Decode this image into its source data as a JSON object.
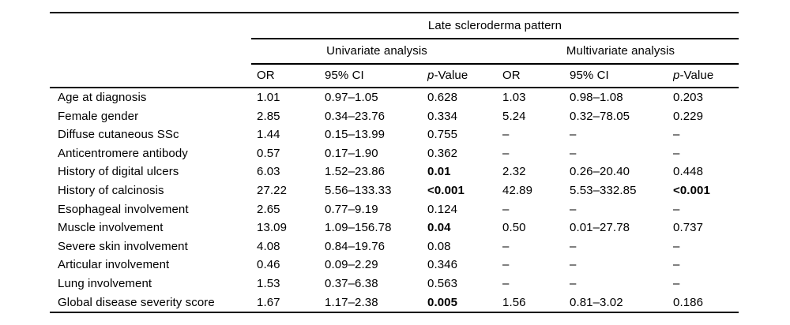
{
  "table": {
    "title": "Late scleroderma pattern",
    "groups": [
      {
        "label": "Univariate analysis"
      },
      {
        "label": "Multivariate analysis"
      }
    ],
    "columns": {
      "or": "OR",
      "ci": "95% CI",
      "p_prefix": "p",
      "p_suffix": "-Value"
    },
    "missing_marker": "–",
    "rows": [
      {
        "label": "Age at diagnosis",
        "cells": [
          "1.01",
          "0.97–1.05",
          "0.628",
          "1.03",
          "0.98–1.08",
          "0.203"
        ],
        "bold": [
          false,
          false,
          false,
          false,
          false,
          false
        ]
      },
      {
        "label": "Female gender",
        "cells": [
          "2.85",
          "0.34–23.76",
          "0.334",
          "5.24",
          "0.32–78.05",
          "0.229"
        ],
        "bold": [
          false,
          false,
          false,
          false,
          false,
          false
        ]
      },
      {
        "label": "Diffuse cutaneous SSc",
        "cells": [
          "1.44",
          "0.15–13.99",
          "0.755",
          "–",
          "–",
          "–"
        ],
        "bold": [
          false,
          false,
          false,
          false,
          false,
          false
        ]
      },
      {
        "label": "Anticentromere antibody",
        "cells": [
          "0.57",
          "0.17–1.90",
          "0.362",
          "–",
          "–",
          "–"
        ],
        "bold": [
          false,
          false,
          false,
          false,
          false,
          false
        ]
      },
      {
        "label": "History of digital ulcers",
        "cells": [
          "6.03",
          "1.52–23.86",
          "0.01",
          "2.32",
          "0.26–20.40",
          "0.448"
        ],
        "bold": [
          false,
          false,
          true,
          false,
          false,
          false
        ]
      },
      {
        "label": "History of calcinosis",
        "cells": [
          "27.22",
          "5.56–133.33",
          "<0.001",
          "42.89",
          "5.53–332.85",
          "<0.001"
        ],
        "bold": [
          false,
          false,
          true,
          false,
          false,
          true
        ]
      },
      {
        "label": "Esophageal involvement",
        "cells": [
          "2.65",
          "0.77–9.19",
          "0.124",
          "–",
          "–",
          "–"
        ],
        "bold": [
          false,
          false,
          false,
          false,
          false,
          false
        ]
      },
      {
        "label": "Muscle involvement",
        "cells": [
          "13.09",
          "1.09–156.78",
          "0.04",
          "0.50",
          "0.01–27.78",
          "0.737"
        ],
        "bold": [
          false,
          false,
          true,
          false,
          false,
          false
        ]
      },
      {
        "label": "Severe skin involvement",
        "cells": [
          "4.08",
          "0.84–19.76",
          "0.08",
          "–",
          "–",
          "–"
        ],
        "bold": [
          false,
          false,
          false,
          false,
          false,
          false
        ]
      },
      {
        "label": "Articular involvement",
        "cells": [
          "0.46",
          "0.09–2.29",
          "0.346",
          "–",
          "–",
          "–"
        ],
        "bold": [
          false,
          false,
          false,
          false,
          false,
          false
        ]
      },
      {
        "label": "Lung involvement",
        "cells": [
          "1.53",
          "0.37–6.38",
          "0.563",
          "–",
          "–",
          "–"
        ],
        "bold": [
          false,
          false,
          false,
          false,
          false,
          false
        ]
      },
      {
        "label": "Global disease severity score",
        "cells": [
          "1.67",
          "1.17–2.38",
          "0.005",
          "1.56",
          "0.81–3.02",
          "0.186"
        ],
        "bold": [
          false,
          false,
          true,
          false,
          false,
          false
        ]
      }
    ]
  }
}
